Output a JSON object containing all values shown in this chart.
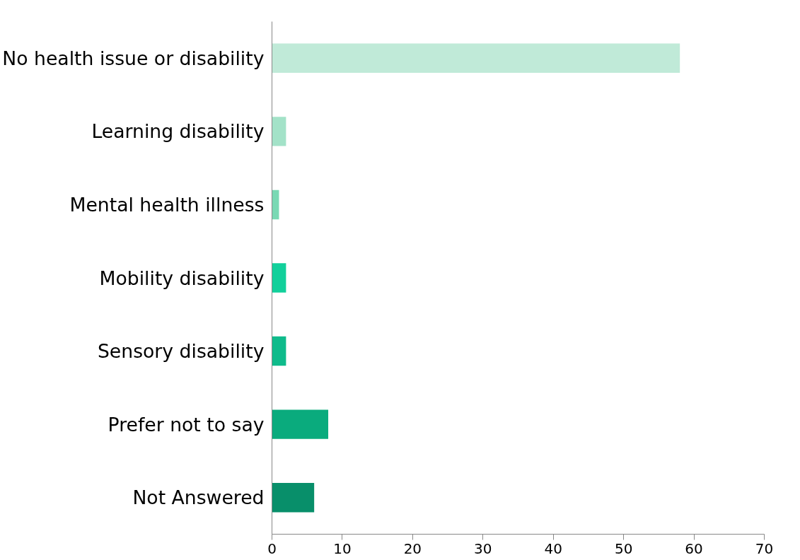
{
  "chart_data": {
    "type": "bar",
    "orientation": "horizontal",
    "categories": [
      "No health issue or disability",
      "Learning disability",
      "Mental health illness",
      "Mobility disability",
      "Sensory disability",
      "Prefer not to say",
      "Not Answered"
    ],
    "values": [
      58,
      2,
      1,
      2,
      2,
      8,
      6
    ],
    "colors": [
      "#c0ead8",
      "#a3e2c8",
      "#7ad9b4",
      "#12d09b",
      "#0fbb8b",
      "#0aab7d",
      "#088f6a"
    ],
    "xlim": [
      0,
      70
    ],
    "xticks": [
      0,
      10,
      20,
      30,
      40,
      50,
      60,
      70
    ],
    "grid": false
  }
}
